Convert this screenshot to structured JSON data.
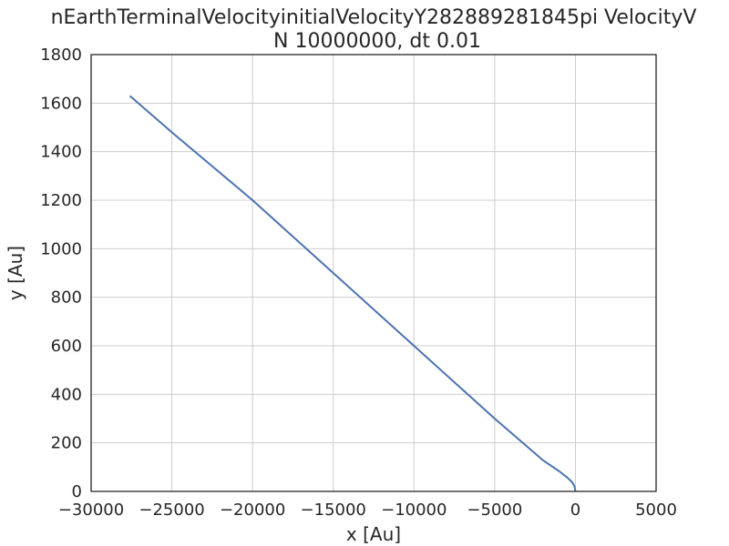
{
  "chart_data": {
    "type": "line",
    "title_line1": "nEarthTerminalVelocityinitialVelocityY282889281845pi VelocityV",
    "title_line2": "N 10000000, dt 0.01",
    "xlabel": "x [Au]",
    "ylabel": "y [Au]",
    "xlim": [
      -30000,
      5000
    ],
    "ylim": [
      0,
      1800
    ],
    "xticks": [
      -30000,
      -25000,
      -20000,
      -15000,
      -10000,
      -5000,
      0,
      5000
    ],
    "xtick_labels": [
      "−30000",
      "−25000",
      "−20000",
      "−15000",
      "−10000",
      "−5000",
      "0",
      "5000"
    ],
    "yticks": [
      0,
      200,
      400,
      600,
      800,
      1000,
      1200,
      1400,
      1600,
      1800
    ],
    "ytick_labels": [
      "0",
      "200",
      "400",
      "600",
      "800",
      "1000",
      "1200",
      "1400",
      "1600",
      "1800"
    ],
    "grid": true,
    "series": [
      {
        "color": "#4c72b0",
        "x": [
          0,
          -50,
          -200,
          -500,
          -1000,
          -2000,
          -5000,
          -10000,
          -15000,
          -20000,
          -25000,
          -27600
        ],
        "y": [
          0,
          20,
          38,
          57,
          83,
          128,
          300,
          600,
          900,
          1200,
          1480,
          1630
        ]
      }
    ]
  }
}
